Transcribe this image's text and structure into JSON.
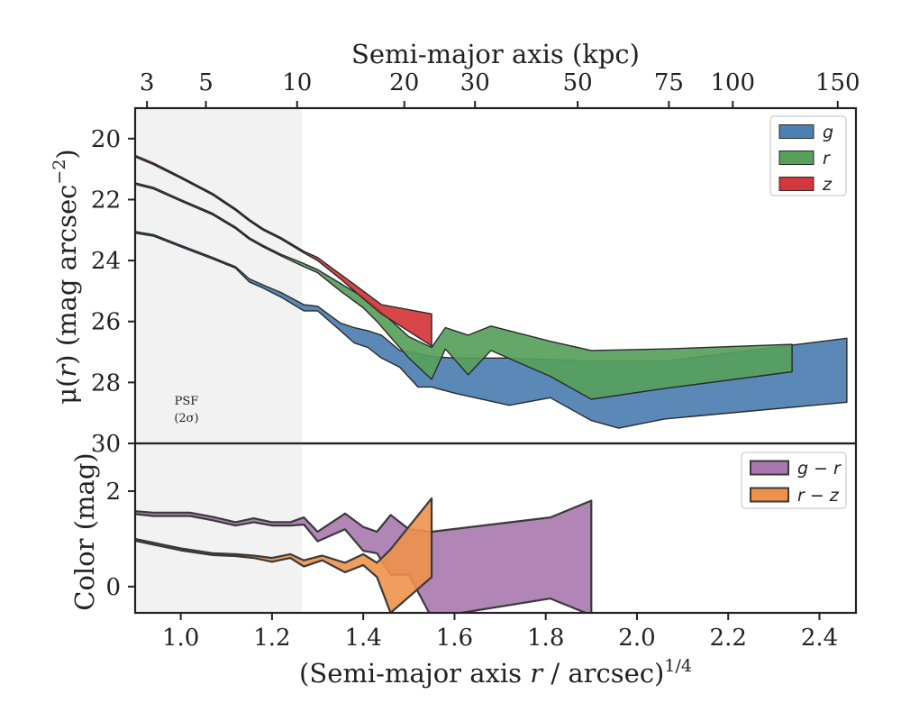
{
  "chart_data": [
    {
      "type": "area",
      "panel": "surface-brightness",
      "top_axis": {
        "label": "Semi-major axis (kpc)",
        "ticks": [
          {
            "label": "3",
            "x": 0.926
          },
          {
            "label": "5",
            "x": 1.055
          },
          {
            "label": "10",
            "x": 1.255
          },
          {
            "label": "20",
            "x": 1.49
          },
          {
            "label": "30",
            "x": 1.645
          },
          {
            "label": "50",
            "x": 1.87
          },
          {
            "label": "75",
            "x": 2.07
          },
          {
            "label": "100",
            "x": 2.21
          },
          {
            "label": "150",
            "x": 2.44
          }
        ]
      },
      "xlim": [
        0.9,
        2.48
      ],
      "ylabel_parts": [
        "μ(",
        "r",
        ") (mag arcsec",
        "−2",
        ")"
      ],
      "ylim": [
        19,
        30
      ],
      "yticks": [
        20,
        22,
        24,
        26,
        28,
        30
      ],
      "inverted_y": true,
      "legend": {
        "location": "upper right"
      },
      "psf_region": {
        "x_max": 1.265,
        "label_line1": "PSF",
        "label_line2": "(2σ)"
      },
      "series": [
        {
          "name": "g",
          "color": "#4c7fb2",
          "x": [
            0.9,
            0.94,
            1.0,
            1.07,
            1.12,
            1.15,
            1.18,
            1.22,
            1.27,
            1.3,
            1.35,
            1.38,
            1.41,
            1.44,
            1.48,
            1.52,
            1.55,
            1.6,
            1.72,
            1.81,
            1.9,
            1.96,
            2.06,
            2.46
          ],
          "y_upper": [
            23.05,
            23.15,
            23.5,
            23.9,
            24.2,
            24.6,
            24.8,
            25.05,
            25.45,
            25.5,
            26.05,
            26.2,
            26.3,
            26.45,
            26.95,
            27.05,
            27.15,
            27.2,
            27.2,
            27.25,
            27.3,
            27.3,
            27.3,
            26.55
          ],
          "y_lower": [
            23.1,
            23.2,
            23.55,
            23.95,
            24.25,
            24.7,
            24.9,
            25.2,
            25.65,
            25.65,
            26.3,
            26.7,
            26.85,
            27.2,
            27.5,
            28.15,
            28.15,
            28.35,
            28.75,
            28.5,
            29.25,
            29.5,
            29.2,
            28.65
          ]
        },
        {
          "name": "r",
          "color": "#57a05c",
          "x": [
            0.9,
            0.94,
            1.0,
            1.07,
            1.12,
            1.15,
            1.18,
            1.22,
            1.27,
            1.3,
            1.35,
            1.4,
            1.43,
            1.5,
            1.55,
            1.58,
            1.63,
            1.68,
            1.81,
            1.9,
            2.06,
            2.34
          ],
          "y_upper": [
            21.45,
            21.6,
            22.0,
            22.45,
            22.9,
            23.25,
            23.5,
            23.8,
            24.1,
            24.3,
            24.75,
            25.2,
            25.55,
            26.5,
            26.85,
            26.2,
            26.45,
            26.15,
            26.65,
            26.95,
            26.9,
            26.75
          ],
          "y_lower": [
            21.5,
            21.65,
            22.05,
            22.5,
            22.95,
            23.3,
            23.55,
            23.85,
            24.2,
            24.4,
            25.0,
            25.55,
            26.0,
            27.2,
            27.9,
            26.9,
            27.75,
            26.95,
            27.8,
            28.55,
            28.2,
            27.65
          ]
        },
        {
          "name": "z",
          "color": "#d4373b",
          "x": [
            0.9,
            0.94,
            1.0,
            1.07,
            1.12,
            1.15,
            1.18,
            1.22,
            1.27,
            1.3,
            1.35,
            1.4,
            1.44,
            1.55
          ],
          "y_upper": [
            20.55,
            20.8,
            21.25,
            21.8,
            22.3,
            22.65,
            22.95,
            23.25,
            23.7,
            23.9,
            24.45,
            25.0,
            25.45,
            25.75
          ],
          "y_lower": [
            20.6,
            20.85,
            21.3,
            21.85,
            22.35,
            22.7,
            23.0,
            23.3,
            23.75,
            24.0,
            24.6,
            25.25,
            25.75,
            26.8
          ]
        }
      ]
    },
    {
      "type": "area",
      "panel": "color",
      "xlabel_parts": [
        "(Semi-major axis ",
        "r",
        " / arcsec)",
        "1/4"
      ],
      "xlim": [
        0.9,
        2.48
      ],
      "xticks": [
        1.0,
        1.2,
        1.4,
        1.6,
        1.8,
        2.0,
        2.2,
        2.4
      ],
      "xtick_labels": [
        "1.0",
        "1.2",
        "1.4",
        "1.6",
        "1.8",
        "2.0",
        "2.2",
        "2.4"
      ],
      "ylabel": "Color (mag)",
      "ylim": [
        -0.55,
        3.0
      ],
      "yticks": [
        0,
        2
      ],
      "legend": {
        "location": "upper right"
      },
      "series": [
        {
          "name": "g − r",
          "color": "#a878ae",
          "x": [
            0.9,
            0.94,
            1.02,
            1.07,
            1.12,
            1.16,
            1.2,
            1.24,
            1.27,
            1.3,
            1.36,
            1.4,
            1.43,
            1.46,
            1.5,
            1.55,
            1.81,
            1.9
          ],
          "y_upper": [
            1.58,
            1.55,
            1.55,
            1.46,
            1.35,
            1.43,
            1.35,
            1.35,
            1.45,
            1.15,
            1.53,
            1.25,
            1.15,
            1.5,
            1.2,
            1.15,
            1.45,
            1.8
          ],
          "y_lower": [
            1.52,
            1.48,
            1.48,
            1.39,
            1.28,
            1.35,
            1.28,
            1.28,
            1.3,
            0.95,
            1.2,
            0.75,
            0.7,
            0.25,
            0.25,
            -0.65,
            -0.25,
            -0.6
          ]
        },
        {
          "name": "r − z",
          "color": "#ee924b",
          "x": [
            0.9,
            0.94,
            1.0,
            1.07,
            1.12,
            1.16,
            1.2,
            1.24,
            1.27,
            1.31,
            1.36,
            1.4,
            1.43,
            1.46,
            1.55
          ],
          "y_upper": [
            1.0,
            0.92,
            0.8,
            0.7,
            0.68,
            0.65,
            0.6,
            0.68,
            0.55,
            0.65,
            0.5,
            0.68,
            0.5,
            0.78,
            1.85
          ],
          "y_lower": [
            0.96,
            0.88,
            0.76,
            0.66,
            0.64,
            0.6,
            0.52,
            0.6,
            0.42,
            0.55,
            0.3,
            0.45,
            0.2,
            -0.55,
            0.2
          ]
        }
      ]
    }
  ]
}
